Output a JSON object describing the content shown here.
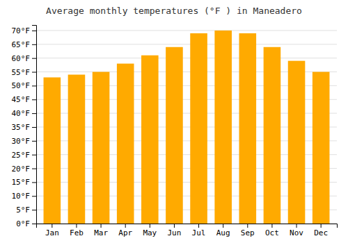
{
  "chart_data": {
    "type": "bar",
    "title": "Average monthly temperatures (°F ) in Maneadero",
    "categories": [
      "Jan",
      "Feb",
      "Mar",
      "Apr",
      "May",
      "Jun",
      "Jul",
      "Aug",
      "Sep",
      "Oct",
      "Nov",
      "Dec"
    ],
    "values": [
      53,
      54,
      55,
      58,
      61,
      64,
      69,
      70,
      69,
      64,
      59,
      55
    ],
    "color": "#FFAA00",
    "ylim": [
      0,
      72
    ],
    "yticks": [
      {
        "value": 0,
        "label": "0°F"
      },
      {
        "value": 5,
        "label": "5°F"
      },
      {
        "value": 10,
        "label": "10°F"
      },
      {
        "value": 15,
        "label": "15°F"
      },
      {
        "value": 20,
        "label": "20°F"
      },
      {
        "value": 25,
        "label": "25°F"
      },
      {
        "value": 30,
        "label": "30°F"
      },
      {
        "value": 35,
        "label": "35°F"
      },
      {
        "value": 40,
        "label": "40°F"
      },
      {
        "value": 45,
        "label": "45°F"
      },
      {
        "value": 50,
        "label": "50°F"
      },
      {
        "value": 55,
        "label": "55°F"
      },
      {
        "value": 60,
        "label": "60°F"
      },
      {
        "value": 65,
        "label": "65°F"
      },
      {
        "value": 70,
        "label": "70°F"
      }
    ],
    "grid": true
  }
}
